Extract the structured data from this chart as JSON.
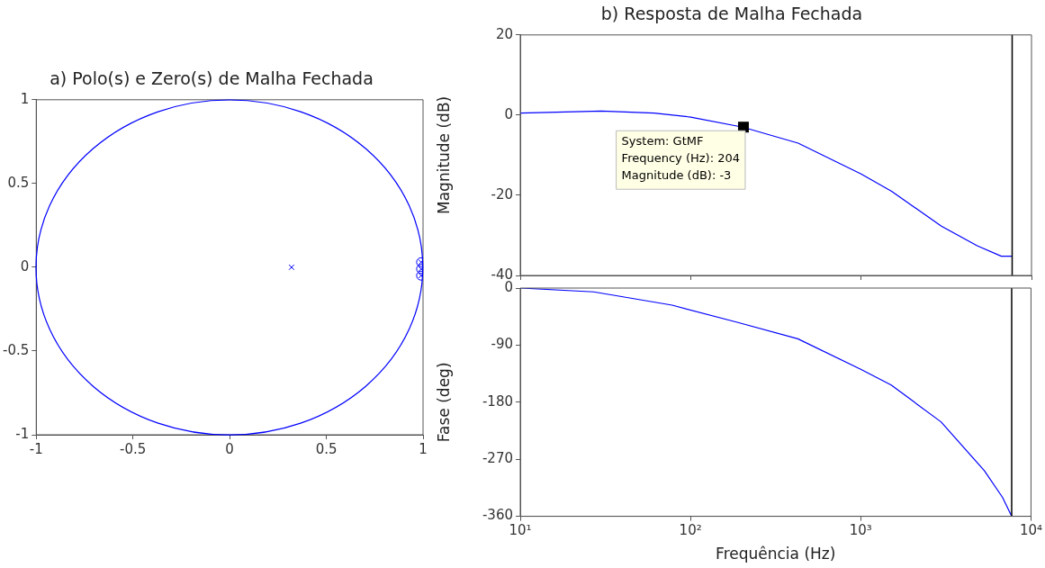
{
  "chart_data": [
    {
      "type": "scatter",
      "title": "a) Polo(s) e Zero(s) de Malha Fechada",
      "xlim": [
        -1,
        1
      ],
      "xticks": [
        -1,
        -0.5,
        0,
        0.5,
        1
      ],
      "ylim": [
        -1,
        1
      ],
      "yticks": [
        -1,
        -0.5,
        0,
        0.5,
        1
      ],
      "grid": false,
      "series": [
        {
          "marker": "circle",
          "color": "#0000ff",
          "x": [
            0.99,
            0.99,
            0.99
          ],
          "values": [
            0.03,
            -0.01,
            -0.05
          ]
        },
        {
          "marker": "cross",
          "color": "#0000ff",
          "x": [
            0.32,
            0.99,
            0.99,
            0.99
          ],
          "values": [
            0,
            0.03,
            -0.01,
            -0.05
          ]
        }
      ]
    },
    {
      "type": "line",
      "title": "b) Resposta de Malha Fechada",
      "ylabel": "Magnitude (dB)",
      "log": "x",
      "xlim": [
        10,
        10000
      ],
      "xticks": [
        {
          "value": 10,
          "label": null
        },
        {
          "value": 100,
          "label": null
        },
        {
          "value": 1000,
          "label": null
        },
        {
          "value": 10000,
          "label": null
        }
      ],
      "ylim": [
        -40,
        20
      ],
      "yticks": [
        -40,
        -20,
        0,
        20
      ],
      "tick_labels": "y",
      "grid": false,
      "ref_lines": [
        {
          "axis": "x",
          "value": 7700,
          "color": "#000000"
        }
      ],
      "annotations": [
        {
          "text": "System: GtMF\nFrequency (Hz): 204\nMagnitude (dB): -3",
          "x": 204,
          "y": -3
        }
      ],
      "series": [
        {
          "color": "#0000ff",
          "x": [
            10,
            30,
            61,
            100,
            202,
            427,
            1000,
            1510,
            2960,
            4800,
            6650,
            7700
          ],
          "values": [
            0.5,
            1,
            0.5,
            -0.5,
            -3,
            -7,
            -14.7,
            -19,
            -27.7,
            -32.6,
            -35.2,
            -35.2
          ]
        }
      ]
    },
    {
      "type": "line",
      "xlabel": "Frequência (Hz)",
      "ylabel": "Fase (deg)",
      "log": "x",
      "xlim": [
        10,
        10000
      ],
      "xticks": [
        {
          "value": 10,
          "label": "10¹"
        },
        {
          "value": 100,
          "label": "10²"
        },
        {
          "value": 1000,
          "label": "10³"
        },
        {
          "value": 10000,
          "label": "10⁴"
        }
      ],
      "ylim": [
        -360,
        0
      ],
      "yticks": [
        -360,
        -270,
        -180,
        -90,
        0
      ],
      "grid": false,
      "ref_lines": [
        {
          "axis": "x",
          "value": 7700,
          "color": "#000000"
        }
      ],
      "series": [
        {
          "color": "#0000ff",
          "x": [
            10,
            27,
            78,
            188,
            427,
            1000,
            1510,
            2960,
            5320,
            6800,
            7700
          ],
          "values": [
            0,
            -6,
            -27,
            -54,
            -80,
            -128,
            -153,
            -211,
            -288,
            -330,
            -360
          ]
        }
      ]
    }
  ]
}
